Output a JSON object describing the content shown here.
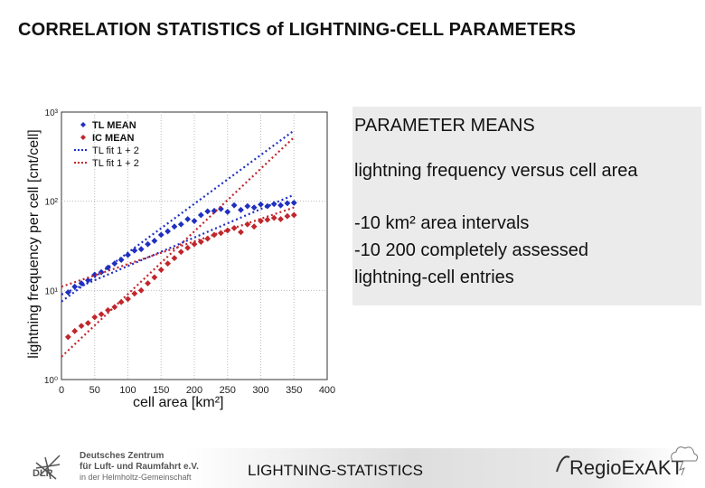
{
  "slide": {
    "title": "CORRELATION STATISTICS of LIGHTNING-CELL PARAMETERS",
    "info_lines": [
      "PARAMETER MEANS",
      "lightning frequency versus cell area",
      "-10 km² area intervals",
      "-10 200 completely assessed",
      " lightning-cell entries"
    ],
    "footer_text": "LIGHTNING-STATISTICS",
    "dlr_lines": [
      "Deutsches Zentrum",
      "für Luft- und Raumfahrt e.V.",
      "in der Helmholtz-Gemeinschaft"
    ],
    "dlr_word": "DLR",
    "regio_logo": "RegioExAKT"
  },
  "chart_data": {
    "type": "scatter",
    "title": "",
    "xlabel": "cell area [km²]",
    "ylabel": "lightning frequency per cell [cnt/cell]",
    "xlim": [
      0,
      400
    ],
    "ylim": [
      1,
      1000
    ],
    "yscale": "log",
    "xticks": [
      "0",
      "50",
      "100",
      "150",
      "200",
      "250",
      "300",
      "350",
      "400"
    ],
    "yticks": [
      "10⁰",
      "10¹",
      "10²",
      "10³"
    ],
    "grid": true,
    "legend_position": "top-left",
    "series": [
      {
        "name": "TL MEAN",
        "kind": "points",
        "color": "#1f2fc0",
        "marker": "diamond",
        "x": [
          10,
          20,
          30,
          40,
          50,
          60,
          70,
          80,
          90,
          100,
          110,
          120,
          130,
          140,
          150,
          160,
          170,
          180,
          190,
          200,
          210,
          220,
          230,
          240,
          250,
          260,
          270,
          280,
          290,
          300,
          310,
          320,
          330,
          340,
          350
        ],
        "y": [
          9.5,
          11,
          12,
          13,
          15,
          16,
          18,
          20,
          22,
          25,
          28,
          29,
          33,
          36,
          42,
          46,
          52,
          55,
          63,
          60,
          70,
          77,
          78,
          82,
          76,
          90,
          80,
          88,
          85,
          92,
          88,
          93,
          90,
          95,
          96
        ]
      },
      {
        "name": "IC MEAN",
        "kind": "points",
        "color": "#c0262c",
        "marker": "diamond",
        "x": [
          10,
          20,
          30,
          40,
          50,
          60,
          70,
          80,
          90,
          100,
          110,
          120,
          130,
          140,
          150,
          160,
          170,
          180,
          190,
          200,
          210,
          220,
          230,
          240,
          250,
          260,
          270,
          280,
          290,
          300,
          310,
          320,
          330,
          340,
          350
        ],
        "y": [
          3,
          3.5,
          4,
          4.3,
          5,
          5.4,
          6,
          6.5,
          7.4,
          8,
          9.2,
          10,
          12,
          14,
          17,
          20,
          23,
          27,
          30,
          33,
          35,
          38,
          42,
          44,
          47,
          50,
          45,
          55,
          52,
          60,
          62,
          65,
          63,
          68,
          70
        ]
      },
      {
        "name": "TL fit 1 + 2",
        "kind": "line",
        "color": "#1f2fc0",
        "dash": "2,3",
        "x": [
          0,
          350
        ],
        "y": [
          7.5,
          620
        ]
      },
      {
        "name": "TL fit 1 + 2",
        "kind": "line",
        "color": "#c0262c",
        "dash": "2,3",
        "x": [
          0,
          350
        ],
        "y": [
          1.8,
          520
        ]
      },
      {
        "name": "",
        "kind": "line",
        "color": "#1f2fc0",
        "dash": "2,3",
        "x": [
          0,
          350
        ],
        "y": [
          9,
          118
        ]
      },
      {
        "name": "",
        "kind": "line",
        "color": "#c0262c",
        "dash": "2,3",
        "x": [
          0,
          350
        ],
        "y": [
          11,
          85
        ]
      }
    ]
  }
}
